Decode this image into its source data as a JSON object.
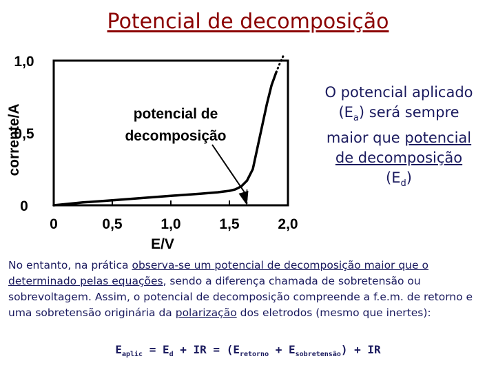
{
  "title": "Potencial de decomposição",
  "chart_data": {
    "type": "line",
    "xlabel": "E/V",
    "ylabel": "corrente/A",
    "x_ticks": [
      "0",
      "0,5",
      "1,0",
      "1,5",
      "2,0"
    ],
    "y_ticks": [
      "0",
      "0,5",
      "1,0"
    ],
    "xlim": [
      0,
      2.0
    ],
    "ylim": [
      0,
      1.0
    ],
    "grid": false,
    "annotation": "potencial de decomposição",
    "annotation_x": 1.65,
    "series": [
      {
        "style": "solid",
        "x": [
          0,
          0.25,
          0.5,
          0.75,
          1.0,
          1.25,
          1.4,
          1.5,
          1.55,
          1.6,
          1.65,
          1.7,
          1.74,
          1.78,
          1.82,
          1.86,
          1.9
        ],
        "y": [
          0,
          0.02,
          0.035,
          0.05,
          0.065,
          0.08,
          0.09,
          0.1,
          0.11,
          0.13,
          0.17,
          0.25,
          0.4,
          0.55,
          0.7,
          0.83,
          0.92
        ]
      },
      {
        "style": "dotted",
        "x": [
          1.9,
          1.93,
          1.97
        ],
        "y": [
          0.92,
          0.98,
          1.05
        ]
      }
    ]
  },
  "side_text": {
    "line1": "O potencial aplicado",
    "open_paren": "(E",
    "sub_a": "a",
    "rest2": ") será sempre",
    "line3_pre": "maior que ",
    "line3_ul": "potencial",
    "line4_ul": "de decomposição",
    "line5_open": "(E",
    "sub_d": "d",
    "line5_close": ")"
  },
  "paragraph": {
    "p1": "No entanto, na prática ",
    "u1": "observa-se um potencial de decomposição maior que o determinado pelas equações",
    "p2": ", sendo a diferença chamada de sobretensão ou sobrevoltagem. Assim, o potencial de decomposição compreende a f.e.m. de retorno e uma sobretensão originária da ",
    "u2": "polarização",
    "p3": " dos eletrodos (mesmo que inertes):"
  },
  "formula": {
    "E1": "E",
    "s1": "aplic",
    "t1": " = E",
    "s2": "d",
    "t2": " + IR = (E",
    "s3": "retorno",
    "t3": " + E",
    "s4": "sobretensão",
    "t4": ") + IR"
  }
}
